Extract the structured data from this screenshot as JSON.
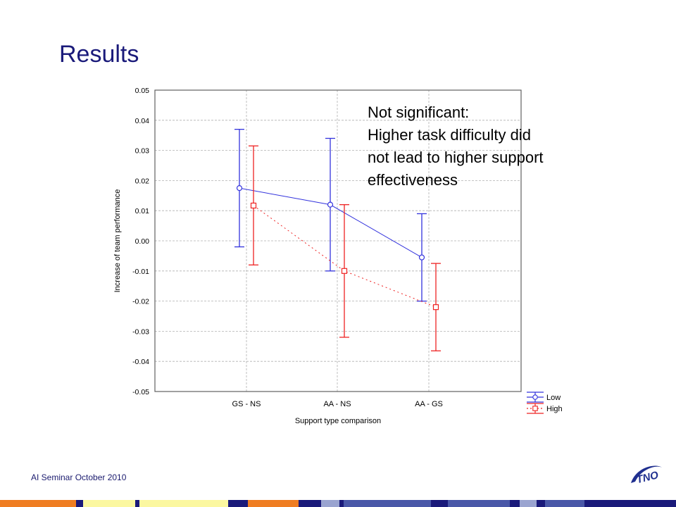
{
  "slide": {
    "title": "Results",
    "footer": "AI Seminar October 2010",
    "annotation_lines": [
      "Not significant:",
      "Higher task difficulty did",
      "not lead to higher support",
      "effectiveness"
    ]
  },
  "colors": {
    "title": "#1a1a7a",
    "low": "#3333dd",
    "high": "#ee2222",
    "logo": "#1f2f8f"
  },
  "logo_text": "TNO",
  "chart_data": {
    "type": "line",
    "xlabel": "Support type comparison",
    "ylabel": "Increase of team performance",
    "categories": [
      "GS - NS",
      "AA - NS",
      "AA - GS"
    ],
    "ylim": [
      -0.05,
      0.05
    ],
    "yticks": [
      "0.05",
      "0.04",
      "0.03",
      "0.02",
      "0.01",
      "0.00",
      "-0.01",
      "-0.02",
      "-0.03",
      "-0.04",
      "-0.05"
    ],
    "grid": true,
    "legend_position": "bottom-right, outside plot",
    "series": [
      {
        "name": "Low",
        "values": [
          0.0175,
          0.012,
          -0.0055
        ],
        "lower": [
          -0.002,
          -0.01,
          -0.02
        ],
        "upper": [
          0.037,
          0.034,
          0.009
        ],
        "marker": "circle",
        "line": "solid"
      },
      {
        "name": "High",
        "values": [
          0.0117,
          -0.01,
          -0.022
        ],
        "lower": [
          -0.008,
          -0.032,
          -0.0365
        ],
        "upper": [
          0.0315,
          0.012,
          -0.0075
        ],
        "marker": "square",
        "line": "dotted"
      }
    ]
  },
  "bottom_bar": [
    {
      "color": "#ef7d22",
      "w": 108
    },
    {
      "color": "#1a1a7a",
      "w": 10
    },
    {
      "color": "#fbf7a0",
      "w": 74
    },
    {
      "color": "#1a1a7a",
      "w": 6
    },
    {
      "color": "#fbf7a0",
      "w": 126
    },
    {
      "color": "#1a1a7a",
      "w": 28
    },
    {
      "color": "#ef7d22",
      "w": 72
    },
    {
      "color": "#1a1a7a",
      "w": 32
    },
    {
      "color": "#9aa4d0",
      "w": 26
    },
    {
      "color": "#1a1a7a",
      "w": 6
    },
    {
      "color": "#4a58a8",
      "w": 124
    },
    {
      "color": "#1a1a7a",
      "w": 24
    },
    {
      "color": "#4a58a8",
      "w": 88
    },
    {
      "color": "#1a1a7a",
      "w": 14
    },
    {
      "color": "#9aa4d0",
      "w": 24
    },
    {
      "color": "#1a1a7a",
      "w": 12
    },
    {
      "color": "#4a58a8",
      "w": 56
    },
    {
      "color": "#1a1a7a",
      "w": 130
    }
  ]
}
